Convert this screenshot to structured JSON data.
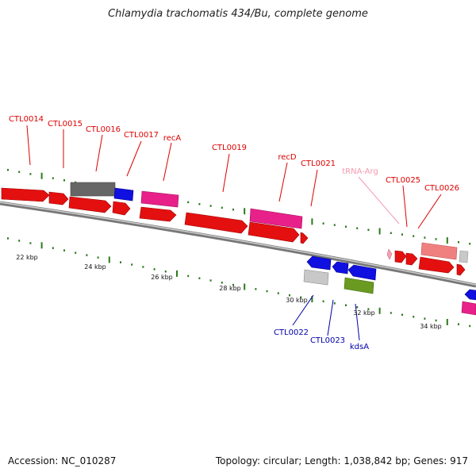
{
  "title": "Chlamydia trachomatis 434/Bu, complete genome",
  "footer": {
    "accession": "Accession: NC_010287",
    "summary": "Topology: circular; Length: 1,038,842 bp; Genes: 917"
  },
  "colors": {
    "upper_label": "#dd0000",
    "lower_label": "#0000aa",
    "trna_label": "#f49ab0",
    "tick": "#2a7a1a",
    "backbone": "#8a8a8a"
  },
  "scale_labels": [
    "22 kbp",
    "24 kbp",
    "26 kbp",
    "28 kbp",
    "30 kbp",
    "32 kbp",
    "34 kbp"
  ],
  "upper_gene_labels": [
    "CTL0014",
    "CTL0015",
    "CTL0016",
    "CTL0017",
    "recA",
    "CTL0019",
    "recD",
    "CTL0021",
    "CTL0025",
    "CTL0026"
  ],
  "trna_label": "tRNA-Arg",
  "lower_gene_labels": [
    "CTL0022",
    "CTL0023",
    "kdsA"
  ]
}
